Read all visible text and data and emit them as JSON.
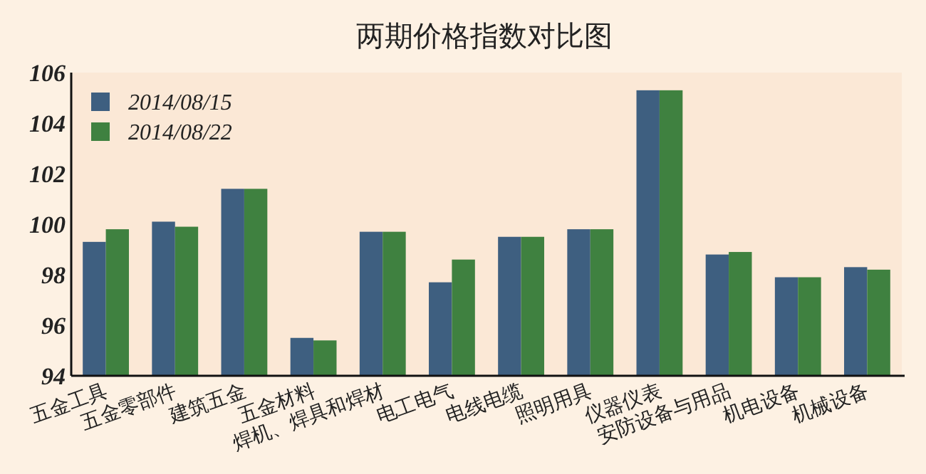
{
  "chart_data": {
    "type": "bar",
    "title": "两期价格指数对比图",
    "categories": [
      "五金工具",
      "五金零部件",
      "建筑五金",
      "五金材料",
      "焊机、焊具和焊材",
      "电工电气",
      "电线电缆",
      "照明用具",
      "仪器仪表",
      "安防设备与用品",
      "机电设备",
      "机械设备"
    ],
    "series": [
      {
        "name": "2014/08/15",
        "color": "#3e5f80",
        "values": [
          99.3,
          100.1,
          101.4,
          95.5,
          99.7,
          97.7,
          99.5,
          99.8,
          105.3,
          98.8,
          97.9,
          98.3
        ]
      },
      {
        "name": "2014/08/22",
        "color": "#3f8140",
        "values": [
          99.8,
          99.9,
          101.4,
          95.4,
          99.7,
          98.6,
          99.5,
          99.8,
          105.3,
          98.9,
          97.9,
          98.2
        ]
      }
    ],
    "ylim": [
      94,
      106
    ],
    "yticks": [
      94,
      96,
      98,
      100,
      102,
      104,
      106
    ],
    "grid": false,
    "legend": "top left"
  }
}
